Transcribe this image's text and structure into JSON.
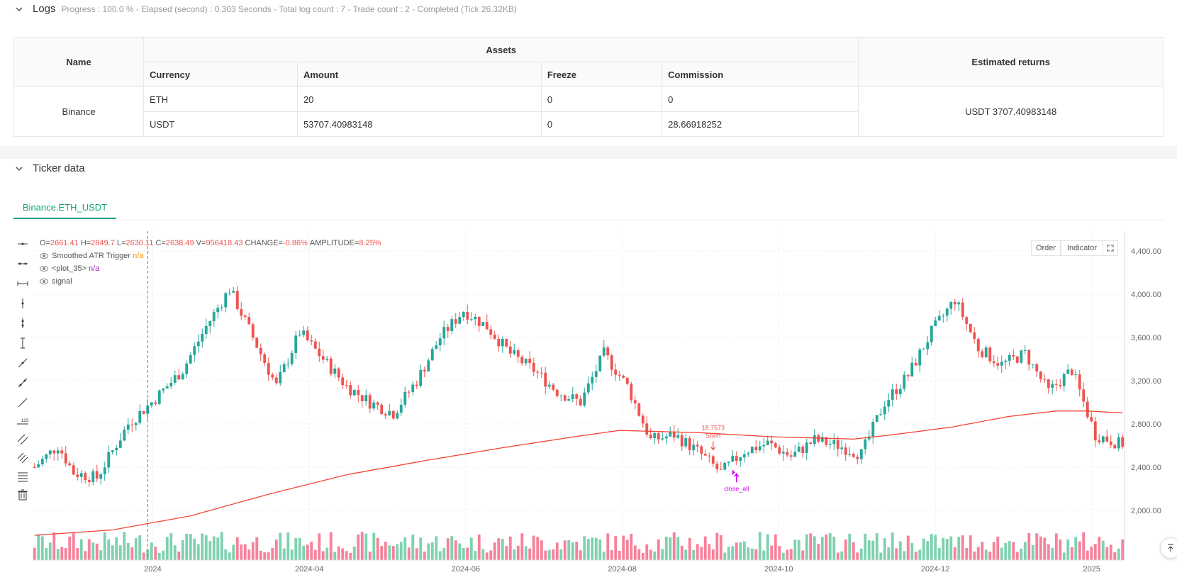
{
  "logs": {
    "title": "Logs",
    "status": "Progress : 100.0 % - Elapsed (second) : 0.303  Seconds - Total log count : 7 - Trade count : 2 - Completed (Tick 26.32KB)"
  },
  "assets_table": {
    "headers": {
      "name": "Name",
      "assets": "Assets",
      "estimated_returns": "Estimated returns",
      "currency": "Currency",
      "amount": "Amount",
      "freeze": "Freeze",
      "commission": "Commission"
    },
    "exchange": "Binance",
    "rows": [
      {
        "currency": "ETH",
        "amount": "20",
        "freeze": "0",
        "commission": "0"
      },
      {
        "currency": "USDT",
        "amount": "53707.40983148",
        "freeze": "0",
        "commission": "28.66918252"
      }
    ],
    "estimated_returns": "USDT 3707.40983148"
  },
  "ticker": {
    "title": "Ticker data",
    "tab": "Binance.ETH_USDT"
  },
  "chart_header": {
    "o_label": "O=",
    "o": "2661.41",
    "h_label": "H=",
    "h": "2849.7",
    "l_label": "L=",
    "l": "2630.11",
    "c_label": "C=",
    "c": "2638.49",
    "v_label": "V=",
    "v": "956418.43",
    "change_label": "CHANGE=",
    "change": "-0.86%",
    "amp_label": "AMPLITUDE=",
    "amp": "8.25%",
    "legend": [
      {
        "name": "Smoothed ATR Trigger",
        "value": "n/a",
        "color": "#ff9800"
      },
      {
        "name": "<plot_35>",
        "value": "n/a",
        "color": "#9c27b0"
      },
      {
        "name": "signal",
        "value": ""
      }
    ],
    "order_button": "Order",
    "indicator_button": "Indicator"
  },
  "annotations": {
    "short_value": "18.7573",
    "short_label": "Short",
    "close_label": "close_all"
  },
  "colors": {
    "up": "#26a69a",
    "down": "#ef5350",
    "ma": "#f44336",
    "accent": "#13a27d",
    "close_all": "#d500f9"
  },
  "chart_data": {
    "type": "candlestick",
    "x_ticks": [
      "2024",
      "2024-04",
      "2024-06",
      "2024-08",
      "2024-10",
      "2024-12",
      "2025"
    ],
    "y_ticks": [
      "2,000.00",
      "2,400.00",
      "2,800.00",
      "3,200.00",
      "3,600.00",
      "4,000.00",
      "4,400.00"
    ],
    "ylim": [
      1550,
      4550
    ],
    "series": [
      {
        "name": "Smoothed ATR Trigger",
        "type": "line"
      }
    ],
    "price_anchors": [
      [
        0,
        2400
      ],
      [
        6,
        2600
      ],
      [
        10,
        2350
      ],
      [
        16,
        2300
      ],
      [
        24,
        2800
      ],
      [
        30,
        3000
      ],
      [
        38,
        3300
      ],
      [
        44,
        3700
      ],
      [
        50,
        4050
      ],
      [
        56,
        3600
      ],
      [
        62,
        3150
      ],
      [
        68,
        3650
      ],
      [
        74,
        3400
      ],
      [
        80,
        3150
      ],
      [
        86,
        3000
      ],
      [
        92,
        2900
      ],
      [
        98,
        3200
      ],
      [
        104,
        3600
      ],
      [
        110,
        3850
      ],
      [
        116,
        3700
      ],
      [
        122,
        3450
      ],
      [
        128,
        3300
      ],
      [
        134,
        3100
      ],
      [
        140,
        3000
      ],
      [
        146,
        3450
      ],
      [
        152,
        3150
      ],
      [
        158,
        2650
      ],
      [
        164,
        2700
      ],
      [
        170,
        2550
      ],
      [
        176,
        2350
      ],
      [
        182,
        2550
      ],
      [
        188,
        2620
      ],
      [
        194,
        2500
      ],
      [
        200,
        2650
      ],
      [
        206,
        2600
      ],
      [
        212,
        2520
      ],
      [
        218,
        3000
      ],
      [
        224,
        3250
      ],
      [
        230,
        3650
      ],
      [
        236,
        3950
      ],
      [
        242,
        3500
      ],
      [
        248,
        3350
      ],
      [
        254,
        3450
      ],
      [
        260,
        3100
      ],
      [
        266,
        3300
      ],
      [
        272,
        2700
      ],
      [
        278,
        2620
      ]
    ],
    "ma_anchors": [
      [
        0,
        1770
      ],
      [
        20,
        1820
      ],
      [
        40,
        1950
      ],
      [
        60,
        2150
      ],
      [
        80,
        2330
      ],
      [
        100,
        2460
      ],
      [
        120,
        2580
      ],
      [
        140,
        2690
      ],
      [
        150,
        2740
      ],
      [
        170,
        2720
      ],
      [
        190,
        2680
      ],
      [
        210,
        2660
      ],
      [
        220,
        2700
      ],
      [
        235,
        2770
      ],
      [
        250,
        2870
      ],
      [
        262,
        2920
      ],
      [
        270,
        2920
      ],
      [
        277,
        2905
      ]
    ],
    "bar_count": 280,
    "crosshair_index": 29,
    "short_marker_index": 174,
    "close_marker_index": 180
  }
}
